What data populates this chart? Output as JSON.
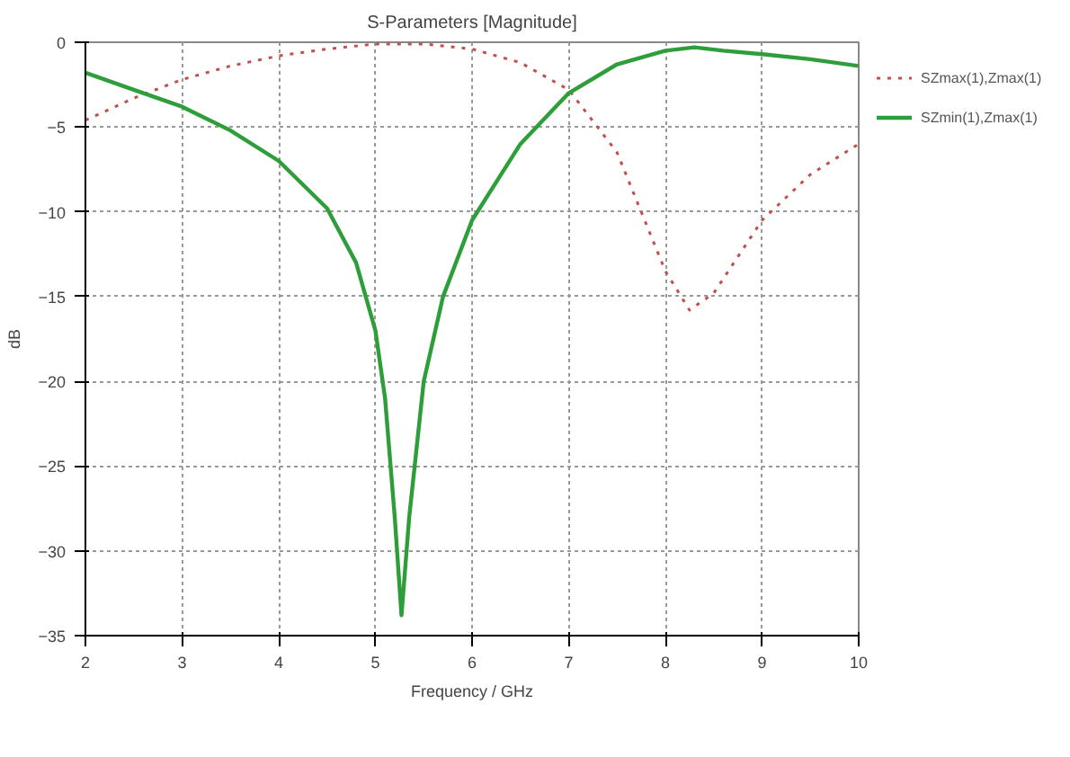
{
  "chart_data": {
    "type": "line",
    "title": "S-Parameters [Magnitude]",
    "xlabel": "Frequency / GHz",
    "ylabel": "dB",
    "xlim": [
      2,
      10
    ],
    "xticks": [
      2,
      3,
      4,
      5,
      6,
      7,
      8,
      9,
      10
    ],
    "ylim": [
      -35,
      0
    ],
    "yticks": [
      -35,
      -30,
      -25,
      -20,
      -15,
      -10,
      -5,
      0
    ],
    "grid": true,
    "legend": "top right",
    "series": [
      {
        "name": "SZmax(1),Zmax(1)",
        "color": "#c0504d",
        "line_style": "dotted",
        "x": [
          2,
          2.5,
          3,
          3.5,
          4,
          4.5,
          5,
          5.5,
          6,
          6.5,
          7,
          7.5,
          8,
          8.25,
          8.5,
          9,
          9.5,
          10
        ],
        "values": [
          -4.6,
          -3.3,
          -2.2,
          -1.4,
          -0.8,
          -0.4,
          -0.1,
          -0.1,
          -0.4,
          -1.2,
          -2.8,
          -6.5,
          -13.5,
          -15.8,
          -14.8,
          -10.5,
          -7.8,
          -6.0
        ]
      },
      {
        "name": "SZmin(1),Zmax(1)",
        "color": "#2e9e3a",
        "line_style": "solid",
        "x": [
          2,
          2.5,
          3,
          3.5,
          4,
          4.5,
          4.8,
          5,
          5.1,
          5.2,
          5.27,
          5.35,
          5.5,
          5.7,
          6,
          6.5,
          7,
          7.5,
          8,
          8.3,
          8.6,
          9,
          9.5,
          10
        ],
        "values": [
          -1.8,
          -2.8,
          -3.8,
          -5.2,
          -7.0,
          -9.8,
          -13,
          -17,
          -21,
          -28,
          -33.8,
          -28,
          -20,
          -15,
          -10.5,
          -6.0,
          -3.0,
          -1.3,
          -0.5,
          -0.3,
          -0.5,
          -0.7,
          -1.0,
          -1.4
        ]
      }
    ]
  }
}
